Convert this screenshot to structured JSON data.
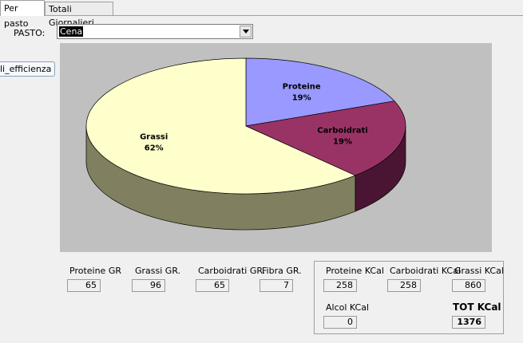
{
  "tabs": [
    {
      "label": "Per pasto",
      "active": true
    },
    {
      "label": "Totali Giornalieri",
      "active": false
    }
  ],
  "pasto": {
    "label": "PASTO:",
    "selected": "Cena"
  },
  "tooltip": {
    "text": "li_efficienza"
  },
  "chart_data": {
    "type": "pie",
    "style": "3d",
    "background": "#c0c0c0",
    "slices": [
      {
        "name": "Proteine",
        "percent": "19%",
        "value": 19,
        "color": "#9999ff"
      },
      {
        "name": "Carboidrati",
        "percent": "19%",
        "value": 19,
        "color": "#993366"
      },
      {
        "name": "Grassi",
        "percent": "62%",
        "value": 62,
        "color": "#ffffcc"
      }
    ]
  },
  "grams": {
    "proteine": {
      "label": "Proteine GR",
      "value": "65"
    },
    "grassi": {
      "label": "Grassi GR.",
      "value": "96"
    },
    "carboidrati": {
      "label": "Carboidrati GR.",
      "value": "65"
    },
    "fibra": {
      "label": "Fibra GR.",
      "value": "7"
    }
  },
  "kcal": {
    "proteine": {
      "label": "Proteine KCal",
      "value": "258"
    },
    "carboidrati": {
      "label": "Carboidrati KCal",
      "value": "258"
    },
    "grassi": {
      "label": "Grassi KCal",
      "value": "860"
    },
    "alcol": {
      "label": "Alcol KCal",
      "value": "0"
    },
    "totale": {
      "label": "TOT KCal",
      "value": "1376"
    }
  }
}
